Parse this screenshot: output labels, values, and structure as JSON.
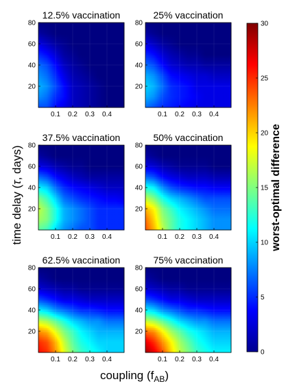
{
  "chart_data": {
    "type": "heatmap",
    "xlabel": "coupling (f",
    "xlabel_sub": "AB",
    "xlabel_close": ")",
    "ylabel_pre": "time delay (",
    "ylabel_sym": "τ",
    "ylabel_post": ", days)",
    "colorbar_label": "worst-optimal difference",
    "colorbar_range": [
      0,
      30
    ],
    "colorbar_ticks": [
      "0",
      "5",
      "10",
      "15",
      "20",
      "25",
      "30"
    ],
    "xlim": [
      0,
      0.5
    ],
    "ylim": [
      0,
      80
    ],
    "x_ticks": [
      "0.1",
      "0.2",
      "0.3",
      "0.4"
    ],
    "y_ticks": [
      "20",
      "40",
      "60",
      "80"
    ],
    "colormap": "jet",
    "x_grid": [
      0,
      0.05,
      0.1,
      0.15,
      0.2,
      0.25,
      0.3,
      0.35,
      0.4,
      0.45,
      0.5
    ],
    "y_grid": [
      0,
      10,
      20,
      30,
      40,
      50,
      60,
      70,
      80
    ],
    "panels": [
      {
        "title": "12.5% vaccination",
        "z": [
          [
            6,
            6,
            4,
            3,
            2,
            1.5,
            1,
            0.5,
            0,
            0,
            0
          ],
          [
            8,
            7,
            5,
            4,
            2,
            1.5,
            1,
            0.5,
            0,
            0,
            0
          ],
          [
            9,
            8,
            6,
            4,
            2,
            1.5,
            1,
            0.5,
            0,
            0,
            0
          ],
          [
            8,
            7,
            5,
            3,
            1.5,
            1,
            0.5,
            0,
            0,
            0,
            0
          ],
          [
            7,
            6,
            4,
            2,
            1,
            0.5,
            0,
            0,
            0,
            0,
            0
          ],
          [
            5,
            4,
            2.5,
            1,
            0.5,
            0,
            0,
            0,
            0,
            0,
            0
          ],
          [
            3,
            2,
            1,
            0.5,
            0,
            0,
            0,
            0,
            0,
            0,
            0
          ],
          [
            1,
            0.5,
            0,
            0,
            0,
            0,
            0,
            0,
            0,
            0,
            0
          ],
          [
            0,
            0,
            0,
            0,
            0,
            0,
            0,
            0,
            0,
            0,
            0
          ]
        ]
      },
      {
        "title": "25% vaccination",
        "z": [
          [
            7,
            6,
            5,
            4.5,
            4,
            3.5,
            3,
            3,
            3,
            3,
            3
          ],
          [
            9,
            8,
            6,
            5,
            4.5,
            4,
            3.5,
            3,
            3,
            3,
            3
          ],
          [
            10,
            9,
            7,
            5,
            4.5,
            4,
            3,
            3,
            3,
            3,
            3
          ],
          [
            9,
            8,
            6,
            4,
            3.5,
            3,
            2.5,
            2.5,
            2,
            2,
            2
          ],
          [
            7,
            6,
            4,
            2.5,
            2,
            1.5,
            1.5,
            1,
            1,
            1,
            1
          ],
          [
            5,
            4,
            2.5,
            1.5,
            1,
            0.5,
            0.5,
            0,
            0,
            0,
            0
          ],
          [
            3,
            2,
            1,
            0.5,
            0,
            0,
            0,
            0,
            0,
            0,
            0
          ],
          [
            1,
            0.5,
            0,
            0,
            0,
            0,
            0,
            0,
            0,
            0,
            0
          ],
          [
            0,
            0,
            0,
            0,
            0,
            0,
            0,
            0,
            0,
            0,
            0
          ]
        ]
      },
      {
        "title": "37.5% vaccination",
        "z": [
          [
            14,
            13,
            10,
            8,
            7,
            6,
            6,
            5,
            5,
            5,
            5
          ],
          [
            16,
            15,
            12,
            9,
            8,
            7,
            6,
            5,
            5,
            5,
            5
          ],
          [
            17,
            15,
            12,
            9,
            8,
            7,
            6,
            5,
            5,
            5,
            5
          ],
          [
            15,
            13,
            10,
            7,
            6,
            5,
            4.5,
            4,
            3.5,
            3.5,
            3
          ],
          [
            11,
            10,
            7,
            5,
            4,
            3.5,
            3,
            2.5,
            2,
            2,
            2
          ],
          [
            7,
            6,
            4,
            3,
            2,
            1.5,
            1,
            1,
            1,
            1,
            1
          ],
          [
            3,
            2.5,
            1.5,
            1,
            0.5,
            0.5,
            0,
            0,
            0,
            0,
            0
          ],
          [
            1,
            0.5,
            0,
            0,
            0,
            0,
            0,
            0,
            0,
            0,
            0
          ],
          [
            0,
            0,
            0,
            0,
            0,
            0,
            0,
            0,
            0,
            0,
            0
          ]
        ]
      },
      {
        "title": "50% vaccination",
        "z": [
          [
            24,
            21,
            17,
            14,
            12,
            11,
            10,
            9,
            8,
            8,
            8
          ],
          [
            23,
            20,
            16,
            14,
            12,
            11,
            10,
            9,
            8,
            8,
            8
          ],
          [
            21,
            19,
            15,
            13,
            11,
            10,
            9,
            8,
            7,
            7,
            7
          ],
          [
            17,
            15,
            12,
            10,
            9,
            8,
            7,
            6,
            6,
            6,
            6
          ],
          [
            12,
            11,
            8,
            6,
            5,
            4.5,
            4,
            4,
            3.5,
            3.5,
            3.5
          ],
          [
            7,
            6,
            4,
            3,
            2.5,
            2,
            2,
            2,
            1.5,
            1.5,
            1.5
          ],
          [
            3,
            2.5,
            1.5,
            1,
            0.5,
            0.5,
            0.5,
            0.5,
            0,
            0,
            0
          ],
          [
            1,
            0.5,
            0,
            0,
            0,
            0,
            0,
            0,
            0,
            0,
            0
          ],
          [
            0,
            0,
            0,
            0,
            0,
            0,
            0,
            0,
            0,
            0,
            0
          ]
        ]
      },
      {
        "title": "62.5% vaccination",
        "z": [
          [
            26,
            25,
            22,
            18,
            15,
            13,
            12,
            11,
            10,
            10,
            10
          ],
          [
            25,
            24,
            21,
            17,
            14,
            12,
            11,
            10,
            10,
            10,
            10
          ],
          [
            22,
            21,
            18,
            15,
            13,
            11,
            10,
            9,
            9,
            9,
            9
          ],
          [
            17,
            16,
            14,
            12,
            10,
            9,
            8,
            8,
            7,
            7,
            7
          ],
          [
            11,
            10,
            8,
            7,
            6,
            5,
            5,
            4.5,
            4,
            4,
            4
          ],
          [
            6,
            5,
            4,
            3,
            3,
            2.5,
            2,
            2,
            2,
            2,
            2
          ],
          [
            2.5,
            2,
            1.5,
            1,
            1,
            0.5,
            0.5,
            0.5,
            0.5,
            0.5,
            0.5
          ],
          [
            1,
            0.5,
            0,
            0,
            0,
            0,
            0,
            0,
            0,
            0,
            0
          ],
          [
            0,
            0,
            0,
            0,
            0,
            0,
            0,
            0,
            0,
            0,
            0
          ]
        ]
      },
      {
        "title": "75% vaccination",
        "z": [
          [
            29,
            27,
            24,
            20,
            17,
            15,
            13,
            12,
            11,
            11,
            11
          ],
          [
            27,
            25,
            22,
            19,
            16,
            14,
            12,
            11,
            10,
            10,
            10
          ],
          [
            23,
            22,
            19,
            16,
            14,
            12,
            11,
            10,
            9,
            9,
            9
          ],
          [
            17,
            16,
            14,
            12,
            10,
            9,
            8,
            8,
            7,
            7,
            7
          ],
          [
            11,
            10,
            8,
            7,
            6,
            5,
            5,
            4.5,
            4,
            4,
            4
          ],
          [
            6,
            5,
            4,
            3,
            3,
            2.5,
            2,
            2,
            2,
            2,
            2
          ],
          [
            2.5,
            2,
            1.5,
            1,
            1,
            0.5,
            0.5,
            0.5,
            0.5,
            0.5,
            0.5
          ],
          [
            1,
            0.5,
            0,
            0,
            0,
            0,
            0,
            0,
            0,
            0,
            0
          ],
          [
            0,
            0,
            0,
            0,
            0,
            0,
            0,
            0,
            0,
            0,
            0
          ]
        ]
      }
    ]
  }
}
